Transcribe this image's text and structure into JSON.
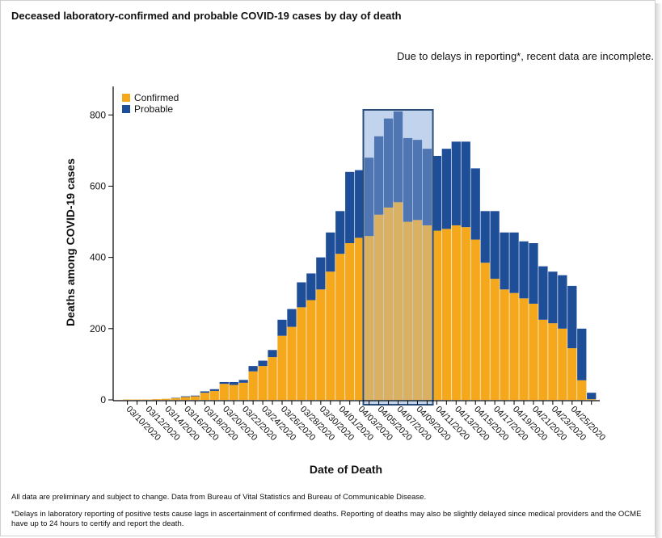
{
  "header": {
    "title": "Deceased laboratory-confirmed and probable COVID-19 cases by day of death",
    "note": "Due to delays in reporting*, recent data are incomplete."
  },
  "footer": {
    "line1": "All data are preliminary and subject to change. Data from Bureau of Vital Statistics and Bureau of Communicable Disease.",
    "line2": "*Delays in laboratory reporting of positive tests cause lags in ascertainment of confirmed deaths. Reporting of deaths may also be slightly delayed since medical providers and the OCME have up to 24 hours to certify and report the death."
  },
  "colors": {
    "confirmed": "#F5A81C",
    "probable": "#1F4E99",
    "highlight_fill": "#A9C3E6",
    "highlight_stroke": "#2B4E78"
  },
  "chart_data": {
    "type": "bar",
    "stacked": true,
    "xlabel": "Date of Death",
    "ylabel": "Deaths among COVID-19 cases",
    "ylim": [
      0,
      880
    ],
    "yticks": [
      0,
      200,
      400,
      600,
      800
    ],
    "legend_position": "top-left",
    "categories": [
      "03/10/2020",
      "03/11/2020",
      "03/12/2020",
      "03/13/2020",
      "03/14/2020",
      "03/15/2020",
      "03/16/2020",
      "03/17/2020",
      "03/18/2020",
      "03/19/2020",
      "03/20/2020",
      "03/21/2020",
      "03/22/2020",
      "03/23/2020",
      "03/24/2020",
      "03/25/2020",
      "03/26/2020",
      "03/27/2020",
      "03/28/2020",
      "03/29/2020",
      "03/30/2020",
      "03/31/2020",
      "04/01/2020",
      "04/02/2020",
      "04/03/2020",
      "04/04/2020",
      "04/05/2020",
      "04/06/2020",
      "04/07/2020",
      "04/08/2020",
      "04/09/2020",
      "04/10/2020",
      "04/11/2020",
      "04/12/2020",
      "04/13/2020",
      "04/14/2020",
      "04/15/2020",
      "04/16/2020",
      "04/17/2020",
      "04/18/2020",
      "04/19/2020",
      "04/20/2020",
      "04/21/2020",
      "04/22/2020",
      "04/23/2020",
      "04/24/2020",
      "04/25/2020",
      "04/26/2020"
    ],
    "tick_labels": [
      "03/10/2020",
      "03/12/2020",
      "03/14/2020",
      "03/16/2020",
      "03/18/2020",
      "03/20/2020",
      "03/22/2020",
      "03/24/2020",
      "03/26/2020",
      "03/28/2020",
      "03/30/2020",
      "04/01/2020",
      "04/03/2020",
      "04/05/2020",
      "04/07/2020",
      "04/09/2020",
      "04/11/2020",
      "04/13/2020",
      "04/15/2020",
      "04/17/2020",
      "04/19/2020",
      "04/21/2020",
      "04/23/2020",
      "04/25/2020"
    ],
    "series": [
      {
        "name": "Confirmed",
        "values": [
          1,
          1,
          1,
          2,
          3,
          5,
          8,
          10,
          20,
          25,
          45,
          42,
          48,
          80,
          95,
          120,
          180,
          205,
          260,
          280,
          310,
          360,
          410,
          440,
          455,
          460,
          520,
          540,
          555,
          500,
          505,
          490,
          475,
          480,
          490,
          485,
          450,
          385,
          340,
          310,
          300,
          285,
          270,
          225,
          215,
          200,
          145,
          55
        ]
      },
      {
        "name": "Probable",
        "values": [
          0,
          0,
          0,
          0,
          0,
          1,
          2,
          2,
          4,
          5,
          5,
          8,
          8,
          15,
          15,
          20,
          45,
          50,
          70,
          75,
          90,
          110,
          120,
          200,
          190,
          220,
          220,
          250,
          255,
          235,
          225,
          215,
          210,
          225,
          235,
          240,
          200,
          145,
          190,
          160,
          170,
          160,
          170,
          150,
          145,
          150,
          175,
          145
        ]
      }
    ],
    "extra_bar": {
      "category": "04/27/2020",
      "confirmed": 2,
      "probable": 18
    },
    "highlight_range": [
      "04/04/2020",
      "04/10/2020"
    ]
  }
}
